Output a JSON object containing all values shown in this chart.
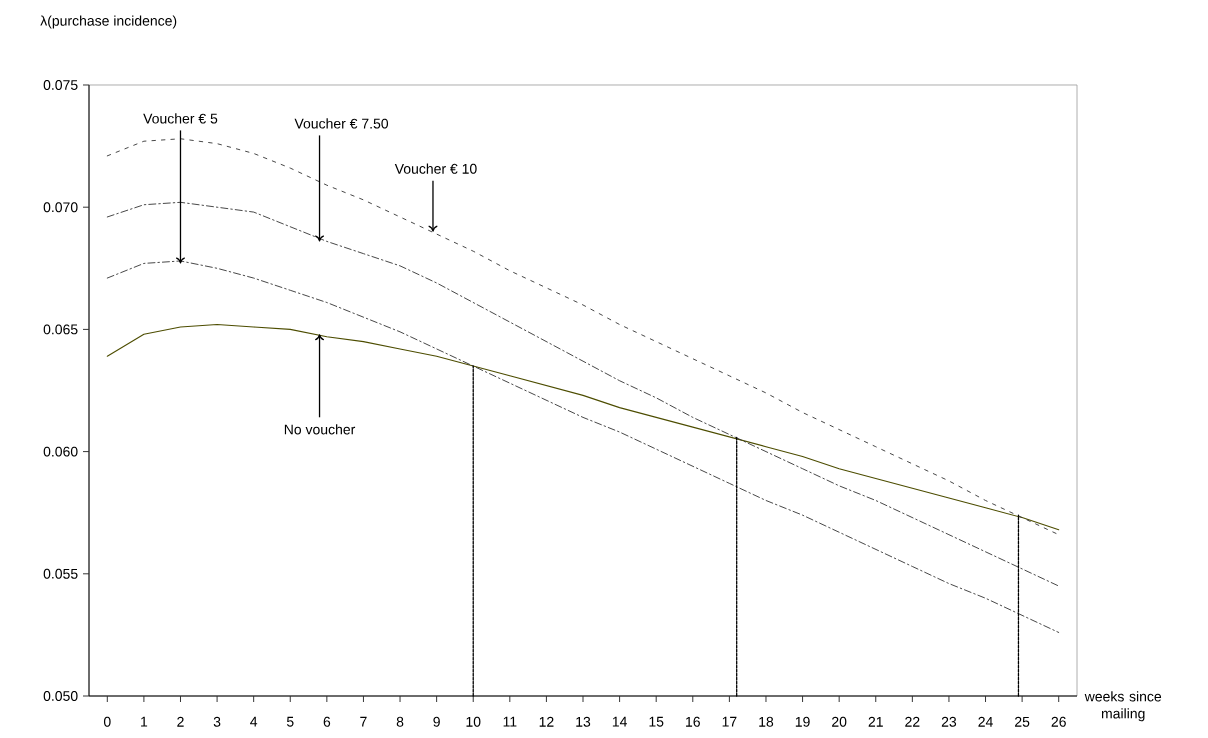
{
  "chart_data": {
    "type": "line",
    "ylabel": "λ(purchase incidence)",
    "xlabel": "weeks since mailing",
    "x": [
      0,
      1,
      2,
      3,
      4,
      5,
      6,
      7,
      8,
      9,
      10,
      11,
      12,
      13,
      14,
      15,
      16,
      17,
      18,
      19,
      20,
      21,
      22,
      23,
      24,
      25,
      26
    ],
    "xlim": [
      -0.5,
      26.5
    ],
    "xticks": [
      0,
      1,
      2,
      3,
      4,
      5,
      6,
      7,
      8,
      9,
      10,
      11,
      12,
      13,
      14,
      15,
      16,
      17,
      18,
      19,
      20,
      21,
      22,
      23,
      24,
      25,
      26
    ],
    "ylim": [
      0.05,
      0.075
    ],
    "yticks": [
      {
        "value": 0.05,
        "label": "0.050"
      },
      {
        "value": 0.055,
        "label": "0.055"
      },
      {
        "value": 0.06,
        "label": "0.060"
      },
      {
        "value": 0.065,
        "label": "0.065"
      },
      {
        "value": 0.07,
        "label": "0.070"
      },
      {
        "value": 0.075,
        "label": "0.075"
      }
    ],
    "series": [
      {
        "color": "#4d4d00",
        "line_style": "solid",
        "values": [
          0.0639,
          0.0648,
          0.0651,
          0.0652,
          0.0651,
          0.065,
          0.0647,
          0.0645,
          0.0642,
          0.0639,
          0.0635,
          0.0631,
          0.0627,
          0.0623,
          0.0618,
          0.0614,
          0.061,
          0.0606,
          0.0602,
          0.0598,
          0.0593,
          0.0589,
          0.0585,
          0.0581,
          0.0577,
          0.0573,
          0.0568
        ]
      },
      {
        "color": "#333333",
        "line_style": "dashdot",
        "values": [
          0.0671,
          0.0677,
          0.0678,
          0.0675,
          0.0671,
          0.0666,
          0.0661,
          0.0655,
          0.0649,
          0.0642,
          0.0635,
          0.0628,
          0.0621,
          0.0614,
          0.0608,
          0.0601,
          0.0594,
          0.0587,
          0.058,
          0.0574,
          0.0567,
          0.056,
          0.0553,
          0.0546,
          0.054,
          0.0533,
          0.0526
        ]
      },
      {
        "color": "#333333",
        "line_style": "dashdot",
        "values": [
          0.0696,
          0.0701,
          0.0702,
          0.07,
          0.0698,
          0.0692,
          0.0686,
          0.0681,
          0.0676,
          0.0669,
          0.0661,
          0.0653,
          0.0645,
          0.0637,
          0.0629,
          0.0622,
          0.0614,
          0.0607,
          0.06,
          0.0593,
          0.0586,
          0.058,
          0.0573,
          0.0566,
          0.0559,
          0.0552,
          0.0545
        ]
      },
      {
        "color": "#333333",
        "line_style": "dashed",
        "values": [
          0.0721,
          0.0727,
          0.0728,
          0.0726,
          0.0722,
          0.0716,
          0.0709,
          0.0703,
          0.0696,
          0.0689,
          0.0682,
          0.0674,
          0.0667,
          0.066,
          0.0652,
          0.0645,
          0.0638,
          0.0631,
          0.0624,
          0.0616,
          0.0609,
          0.0602,
          0.0595,
          0.0588,
          0.058,
          0.0573,
          0.0566
        ]
      },
      {
        "color": "#000000",
        "line_style": "dotted",
        "x": [
          10,
          10
        ],
        "values": [
          0.05,
          0.0635
        ]
      },
      {
        "color": "#000000",
        "line_style": "dotted",
        "x": [
          17.2,
          17.2
        ],
        "values": [
          0.05,
          0.0606
        ]
      },
      {
        "color": "#000000",
        "line_style": "dotted",
        "x": [
          24.9,
          24.9
        ],
        "values": [
          0.05,
          0.0574
        ]
      }
    ],
    "annotations": [
      {
        "text": "Voucher € 5",
        "x": 2,
        "y": 0.0677
      },
      {
        "text": "Voucher € 7.50",
        "x": 5.8,
        "y": 0.0686
      },
      {
        "text": "Voucher € 10",
        "x": 8.9,
        "y": 0.069
      },
      {
        "text": "No voucher",
        "x": 5.8,
        "y": 0.0648
      }
    ]
  }
}
